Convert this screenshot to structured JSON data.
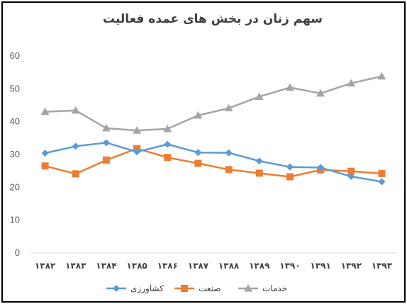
{
  "chart_data": {
    "type": "line",
    "title": "سهم زنان در بخش های عمده فعالیت",
    "categories": [
      "۱۳۸۲",
      "۱۳۸۳",
      "۱۳۸۴",
      "۱۳۸۵",
      "۱۳۸۶",
      "۱۳۸۷",
      "۱۳۸۸",
      "۱۳۸۹",
      "۱۳۹۰",
      "۱۳۹۱",
      "۱۳۹۲",
      "۱۳۹۳"
    ],
    "ylim": [
      0,
      60
    ],
    "yticks": [
      "0",
      "10",
      "20",
      "30",
      "40",
      "50",
      "60"
    ],
    "grid": false,
    "legend": "bottom",
    "series": [
      {
        "name": "کشاورزی",
        "color": "#5B9BD5",
        "marker": "diamond",
        "values": [
          30.4,
          32.5,
          33.6,
          30.8,
          33.1,
          30.6,
          30.5,
          28.0,
          26.2,
          26.0,
          23.3,
          21.7
        ]
      },
      {
        "name": "صنعت",
        "color": "#ED7D31",
        "marker": "square",
        "values": [
          26.5,
          24.1,
          28.3,
          31.8,
          29.1,
          27.3,
          25.4,
          24.3,
          23.2,
          25.3,
          24.9,
          24.2
        ]
      },
      {
        "name": "خدمات",
        "color": "#A5A5A5",
        "marker": "triangle",
        "values": [
          43.0,
          43.4,
          38.0,
          37.3,
          37.8,
          41.9,
          44.1,
          47.6,
          50.4,
          48.6,
          51.7,
          53.8
        ]
      }
    ]
  }
}
